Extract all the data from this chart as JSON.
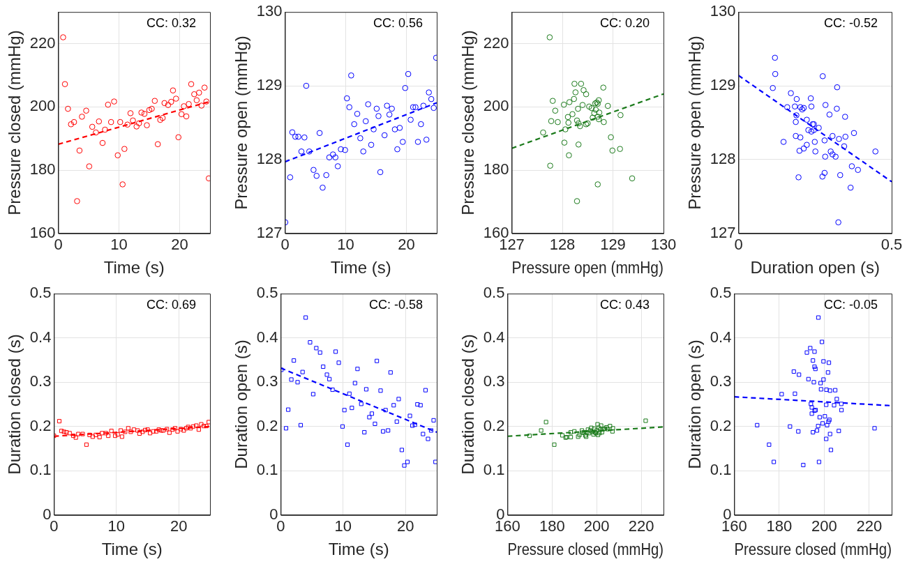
{
  "chart_data": [
    {
      "type": "scatter",
      "xlabel": "Time (s)",
      "ylabel": "Pressure closed (mmHg)",
      "xlim": [
        0,
        25
      ],
      "ylim": [
        160,
        230
      ],
      "xticks": [
        0,
        10,
        20
      ],
      "yticks": [
        160,
        180,
        200,
        220
      ],
      "grid": true,
      "annotations": [
        "CC: 0.32"
      ],
      "series": [
        {
          "marker": "circle",
          "color": "#ff0000",
          "x": [
            0.8,
            1.1,
            1.6,
            2.1,
            2.6,
            3.5,
            3.1,
            3.9,
            4.6,
            5.1,
            5.6,
            6.2,
            6.7,
            7.3,
            7.7,
            8.2,
            8.7,
            9.2,
            9.8,
            10.2,
            10.6,
            10.9,
            11.4,
            11.9,
            12.3,
            12.9,
            13.3,
            13.7,
            14.2,
            14.6,
            15.0,
            15.4,
            15.9,
            16.4,
            16.8,
            17.2,
            17.5,
            18.1,
            18.6,
            18.9,
            19.4,
            19.8,
            20.3,
            20.7,
            21.1,
            21.5,
            21.9,
            22.4,
            22.8,
            23.2,
            23.6,
            24.1,
            24.4,
            24.8
          ],
          "values": [
            222.0,
            207.2,
            199.4,
            194.5,
            195.2,
            186.2,
            170.2,
            196.9,
            198.8,
            181.2,
            193.7,
            191.9,
            195.4,
            188.6,
            192.8,
            200.7,
            195.2,
            201.7,
            184.7,
            195.2,
            175.5,
            186.7,
            194.4,
            198.0,
            195.7,
            193.8,
            194.8,
            198.2,
            197.8,
            194.2,
            199.0,
            199.4,
            201.9,
            188.2,
            195.9,
            196.5,
            201.2,
            200.6,
            201.6,
            205.2,
            202.6,
            190.4,
            197.7,
            200.2,
            197.0,
            200.9,
            207.2,
            204.0,
            202.1,
            204.5,
            200.4,
            206.1,
            201.7,
            177.4
          ]
        },
        {
          "type": "line",
          "line_style": "dashed",
          "color": "#ff0000",
          "x": [
            0,
            25
          ],
          "values": [
            188.2,
            201.7
          ]
        }
      ]
    },
    {
      "type": "scatter",
      "xlabel": "Time (s)",
      "ylabel": "Pressure open (mmHg)",
      "xlim": [
        0,
        25
      ],
      "ylim": [
        127,
        130
      ],
      "xticks": [
        0,
        10,
        20
      ],
      "yticks": [
        127,
        128,
        129,
        130
      ],
      "grid": true,
      "annotations": [
        "CC: 0.56"
      ],
      "series": [
        {
          "marker": "circle",
          "color": "#0000ff",
          "x": [
            0.05,
            0.85,
            1.2,
            1.7,
            2.2,
            2.7,
            3.2,
            3.5,
            4.0,
            4.7,
            5.2,
            5.7,
            6.2,
            6.8,
            7.3,
            7.9,
            8.3,
            8.7,
            9.2,
            9.9,
            10.2,
            10.6,
            10.9,
            11.4,
            11.9,
            12.4,
            12.9,
            13.3,
            13.7,
            14.2,
            14.6,
            15.1,
            15.4,
            15.7,
            16.4,
            16.8,
            17.2,
            17.6,
            18.1,
            18.5,
            18.9,
            19.4,
            19.8,
            20.3,
            20.7,
            21.1,
            21.5,
            21.9,
            22.4,
            22.8,
            23.3,
            23.7,
            24.1,
            24.5,
            24.9
          ],
          "values": [
            127.15,
            127.76,
            128.37,
            128.31,
            128.31,
            128.11,
            128.3,
            129.0,
            128.11,
            127.86,
            127.78,
            128.36,
            127.62,
            127.79,
            128.03,
            128.07,
            128.03,
            127.91,
            128.14,
            128.13,
            128.83,
            128.71,
            129.14,
            128.48,
            128.62,
            128.29,
            128.11,
            128.52,
            128.75,
            128.2,
            128.41,
            128.69,
            128.59,
            127.83,
            128.33,
            128.73,
            128.61,
            128.69,
            128.41,
            128.14,
            128.43,
            128.24,
            128.97,
            129.16,
            128.54,
            128.71,
            128.71,
            128.24,
            128.48,
            128.73,
            128.27,
            128.91,
            128.82,
            128.7,
            129.38
          ]
        },
        {
          "type": "line",
          "line_style": "dashed",
          "color": "#0000ff",
          "x": [
            0,
            25
          ],
          "values": [
            127.97,
            128.77
          ]
        }
      ]
    },
    {
      "type": "scatter",
      "xlabel": "Pressure open (mmHg)",
      "ylabel": "Pressure closed (mmHg)",
      "xlim": [
        127,
        130
      ],
      "ylim": [
        160,
        230
      ],
      "xticks": [
        127,
        128,
        129,
        130
      ],
      "yticks": [
        160,
        180,
        200,
        220
      ],
      "grid": true,
      "annotations": [
        "CC: 0.20"
      ],
      "series": [
        {
          "marker": "circle",
          "color": "#1a7a1a",
          "x": [
            127.75,
            127.81,
            127.78,
            127.62,
            127.86,
            127.91,
            127.76,
            128.03,
            128.06,
            128.04,
            128.13,
            128.11,
            128.12,
            128.14,
            128.2,
            128.24,
            128.23,
            128.26,
            128.29,
            128.31,
            128.32,
            128.29,
            128.32,
            128.35,
            128.37,
            128.4,
            128.42,
            128.47,
            128.47,
            128.5,
            128.53,
            128.58,
            128.6,
            128.63,
            128.65,
            128.66,
            128.68,
            128.7,
            128.7,
            128.72,
            128.72,
            128.73,
            128.7,
            128.81,
            128.82,
            128.9,
            128.96,
            128.99,
            129.14,
            129.15,
            129.38
          ],
          "values": [
            222.0,
            201.9,
            195.5,
            191.9,
            198.8,
            195.2,
            181.4,
            200.7,
            192.9,
            188.7,
            184.7,
            196.8,
            195.0,
            201.5,
            197.7,
            207.3,
            202.5,
            204.6,
            195.7,
            199.4,
            188.1,
            170.2,
            194.8,
            193.9,
            207.3,
            200.6,
            205.3,
            204.0,
            194.5,
            194.8,
            200.1,
            199.6,
            196.6,
            198.0,
            201.1,
            199.1,
            201.4,
            196.9,
            201.0,
            202.1,
            196.1,
            198.2,
            175.5,
            206.1,
            195.2,
            200.3,
            190.4,
            186.2,
            186.7,
            197.4,
            177.4
          ]
        },
        {
          "type": "line",
          "line_style": "dashed",
          "color": "#1a7a1a",
          "x": [
            127,
            130
          ],
          "values": [
            186.9,
            204.1
          ]
        }
      ]
    },
    {
      "type": "scatter",
      "xlabel": "Duration open (s)",
      "ylabel": "Pressure open (mmHg)",
      "xlim": [
        0,
        0.5
      ],
      "ylim": [
        127,
        130
      ],
      "xticks": [
        0,
        0.5
      ],
      "yticks": [
        127,
        128,
        129,
        130
      ],
      "grid": true,
      "annotations": [
        "CC: -0.52"
      ],
      "series": [
        {
          "marker": "circle",
          "color": "#0000ff",
          "x": [
            0.119,
            0.12,
            0.112,
            0.147,
            0.171,
            0.184,
            0.159,
            0.19,
            0.189,
            0.187,
            0.202,
            0.208,
            0.213,
            0.187,
            0.202,
            0.196,
            0.199,
            0.213,
            0.223,
            0.223,
            0.236,
            0.238,
            0.228,
            0.238,
            0.242,
            0.246,
            0.246,
            0.249,
            0.251,
            0.262,
            0.275,
            0.281,
            0.284,
            0.283,
            0.274,
            0.281,
            0.297,
            0.301,
            0.307,
            0.307,
            0.317,
            0.321,
            0.322,
            0.328,
            0.332,
            0.326,
            0.345,
            0.348,
            0.349,
            0.37,
            0.377,
            0.39,
            0.366,
            0.447
          ],
          "values": [
            129.38,
            129.16,
            128.97,
            128.24,
            128.9,
            128.72,
            128.71,
            128.82,
            128.6,
            128.51,
            128.71,
            128.68,
            128.7,
            128.32,
            128.3,
            127.76,
            128.12,
            128.15,
            128.2,
            128.54,
            128.83,
            128.72,
            128.4,
            128.38,
            128.48,
            128.48,
            128.4,
            128.24,
            128.11,
            128.43,
            129.13,
            128.26,
            128.74,
            128.04,
            127.77,
            127.82,
            128.61,
            128.11,
            128.32,
            128.07,
            128.04,
            128.69,
            128.98,
            128.28,
            127.79,
            127.15,
            128.18,
            128.58,
            128.31,
            127.91,
            128.36,
            127.86,
            127.62,
            128.11
          ]
        },
        {
          "type": "line",
          "line_style": "dashed",
          "color": "#0000ff",
          "x": [
            0,
            0.5
          ],
          "values": [
            129.14,
            127.7
          ]
        }
      ]
    },
    {
      "type": "scatter",
      "xlabel": "Time (s)",
      "ylabel": "Duration closed (s)",
      "xlim": [
        0,
        25
      ],
      "ylim": [
        0,
        0.5
      ],
      "xticks": [
        0,
        10,
        20
      ],
      "yticks": [
        0,
        0.1,
        0.2,
        0.3,
        0.4,
        0.5
      ],
      "grid": true,
      "annotations": [
        "CC: 0.69"
      ],
      "series": [
        {
          "marker": "square",
          "color": "#ff0000",
          "x": [
            0,
            0.85,
            1.2,
            1.6,
            2.0,
            2.5,
            3.1,
            3.5,
            3.9,
            4.6,
            5.2,
            5.7,
            6.2,
            6.7,
            7.3,
            7.7,
            8.3,
            8.7,
            9.2,
            9.8,
            10.2,
            10.7,
            10.9,
            11.4,
            11.9,
            12.3,
            12.8,
            13.4,
            13.7,
            14.2,
            14.6,
            15.0,
            15.4,
            15.9,
            16.4,
            16.8,
            17.2,
            17.5,
            18.1,
            18.5,
            19.0,
            19.4,
            19.8,
            20.3,
            20.8,
            21.2,
            21.5,
            21.9,
            22.3,
            22.8,
            23.2,
            23.6,
            24.0,
            24.4,
            24.8
          ],
          "values": [
            0.179,
            0.212,
            0.19,
            0.188,
            0.187,
            0.185,
            0.179,
            0.175,
            0.183,
            0.183,
            0.159,
            0.181,
            0.177,
            0.181,
            0.176,
            0.185,
            0.185,
            0.179,
            0.19,
            0.179,
            0.182,
            0.191,
            0.177,
            0.188,
            0.196,
            0.188,
            0.193,
            0.191,
            0.184,
            0.188,
            0.192,
            0.193,
            0.185,
            0.189,
            0.189,
            0.193,
            0.191,
            0.191,
            0.194,
            0.186,
            0.193,
            0.196,
            0.189,
            0.194,
            0.191,
            0.196,
            0.199,
            0.196,
            0.2,
            0.202,
            0.193,
            0.205,
            0.201,
            0.201,
            0.21
          ]
        },
        {
          "type": "line",
          "line_style": "dashed",
          "color": "#ff0000",
          "x": [
            0,
            25
          ],
          "values": [
            0.178,
            0.2
          ]
        }
      ]
    },
    {
      "type": "scatter",
      "xlabel": "Time (s)",
      "ylabel": "Duration open (s)",
      "xlim": [
        0,
        25
      ],
      "ylim": [
        0,
        0.5
      ],
      "xticks": [
        0,
        10,
        20
      ],
      "yticks": [
        0,
        0.1,
        0.2,
        0.3,
        0.4,
        0.5
      ],
      "grid": true,
      "annotations": [
        "CC: -0.58"
      ],
      "series": [
        {
          "marker": "square",
          "color": "#0000ff",
          "x": [
            0.1,
            0.85,
            1.2,
            1.7,
            2.1,
            2.7,
            3.2,
            3.5,
            4.0,
            4.7,
            5.2,
            5.7,
            6.3,
            6.8,
            7.4,
            7.8,
            8.3,
            8.8,
            9.3,
            9.9,
            10.2,
            10.7,
            11.0,
            11.4,
            11.9,
            12.3,
            12.9,
            13.4,
            13.7,
            14.2,
            14.6,
            15.1,
            15.4,
            16.0,
            16.4,
            16.8,
            17.2,
            17.6,
            18.1,
            18.6,
            18.9,
            19.4,
            19.8,
            20.3,
            20.7,
            21.1,
            21.5,
            21.9,
            22.4,
            22.8,
            23.2,
            23.6,
            24.1,
            24.5,
            24.8
          ],
          "values": [
            0.328,
            0.196,
            0.238,
            0.306,
            0.349,
            0.3,
            0.203,
            0.323,
            0.446,
            0.39,
            0.273,
            0.377,
            0.367,
            0.335,
            0.317,
            0.307,
            0.283,
            0.369,
            0.344,
            0.2,
            0.237,
            0.159,
            0.274,
            0.242,
            0.298,
            0.33,
            0.251,
            0.187,
            0.284,
            0.221,
            0.229,
            0.206,
            0.348,
            0.281,
            0.189,
            0.237,
            0.191,
            0.322,
            0.248,
            0.211,
            0.262,
            0.147,
            0.112,
            0.12,
            0.224,
            0.202,
            0.204,
            0.25,
            0.248,
            0.183,
            0.282,
            0.172,
            0.191,
            0.214,
            0.12
          ]
        },
        {
          "type": "line",
          "line_style": "dashed",
          "color": "#0000ff",
          "x": [
            0,
            25
          ],
          "values": [
            0.332,
            0.187
          ]
        }
      ]
    },
    {
      "type": "scatter",
      "xlabel": "Pressure closed (mmHg)",
      "ylabel": "Duration closed (s)",
      "xlim": [
        160,
        230
      ],
      "ylim": [
        0,
        0.5
      ],
      "xticks": [
        160,
        180,
        200,
        220
      ],
      "yticks": [
        0,
        0.1,
        0.2,
        0.3,
        0.4,
        0.5
      ],
      "grid": true,
      "annotations": [
        "CC: 0.43"
      ],
      "series": [
        {
          "marker": "square",
          "color": "#1a7a1a",
          "x": [
            169.9,
            175.1,
            177.3,
            181.0,
            184.6,
            186.1,
            186.6,
            188.4,
            188.4,
            190.0,
            191.7,
            192.3,
            193.4,
            193.6,
            194.3,
            194.9,
            195.3,
            195.7,
            196.1,
            196.6,
            197.1,
            197.6,
            197.9,
            198.6,
            198.9,
            199.3,
            199.7,
            200.0,
            200.4,
            200.6,
            201.0,
            201.3,
            201.7,
            202.0,
            202.4,
            203.0,
            203.7,
            204.4,
            205.0,
            206.0,
            207.1,
            207.3,
            222.0
          ],
          "values": [
            0.179,
            0.191,
            0.21,
            0.159,
            0.18,
            0.175,
            0.176,
            0.176,
            0.187,
            0.189,
            0.177,
            0.181,
            0.191,
            0.186,
            0.187,
            0.18,
            0.177,
            0.187,
            0.193,
            0.185,
            0.191,
            0.197,
            0.188,
            0.182,
            0.195,
            0.187,
            0.185,
            0.191,
            0.205,
            0.181,
            0.197,
            0.185,
            0.193,
            0.202,
            0.187,
            0.194,
            0.195,
            0.198,
            0.194,
            0.201,
            0.189,
            0.196,
            0.213
          ]
        },
        {
          "type": "line",
          "line_style": "dashed",
          "color": "#1a7a1a",
          "x": [
            160,
            230
          ],
          "values": [
            0.178,
            0.199
          ]
        }
      ]
    },
    {
      "type": "scatter",
      "xlabel": "Pressure closed (mmHg)",
      "ylabel": "Duration open (s)",
      "xlim": [
        160,
        230
      ],
      "ylim": [
        0,
        0.5
      ],
      "xticks": [
        160,
        180,
        200,
        220
      ],
      "yticks": [
        0,
        0.1,
        0.2,
        0.3,
        0.4,
        0.5
      ],
      "grid": true,
      "annotations": [
        "CC: -0.05"
      ],
      "series": [
        {
          "marker": "square",
          "color": "#0000ff",
          "x": [
            170.2,
            175.5,
            177.6,
            181.1,
            184.8,
            186.5,
            187.0,
            188.5,
            188.8,
            190.7,
            192.3,
            193.0,
            193.8,
            194.1,
            194.5,
            194.5,
            195.0,
            195.0,
            195.4,
            195.7,
            195.7,
            196.1,
            195.7,
            196.2,
            196.8,
            197.3,
            197.4,
            197.7,
            198.0,
            198.4,
            198.6,
            199.0,
            199.3,
            199.7,
            199.7,
            200.3,
            200.9,
            200.9,
            201.0,
            201.3,
            201.7,
            201.9,
            202.1,
            202.3,
            202.6,
            202.6,
            203.0,
            204.4,
            204.9,
            205.6,
            206.5,
            207.6,
            207.7,
            222.4
          ],
          "values": [
            0.203,
            0.159,
            0.12,
            0.273,
            0.2,
            0.324,
            0.274,
            0.189,
            0.317,
            0.113,
            0.367,
            0.307,
            0.377,
            0.251,
            0.229,
            0.243,
            0.349,
            0.187,
            0.3,
            0.369,
            0.335,
            0.33,
            0.236,
            0.237,
            0.191,
            0.201,
            0.446,
            0.12,
            0.221,
            0.298,
            0.284,
            0.391,
            0.207,
            0.347,
            0.306,
            0.223,
            0.249,
            0.172,
            0.283,
            0.203,
            0.322,
            0.211,
            0.344,
            0.215,
            0.281,
            0.183,
            0.147,
            0.248,
            0.282,
            0.262,
            0.19,
            0.251,
            0.237,
            0.196
          ]
        },
        {
          "type": "line",
          "line_style": "dashed",
          "color": "#0000ff",
          "x": [
            160,
            230
          ],
          "values": [
            0.267,
            0.247
          ]
        }
      ]
    }
  ]
}
